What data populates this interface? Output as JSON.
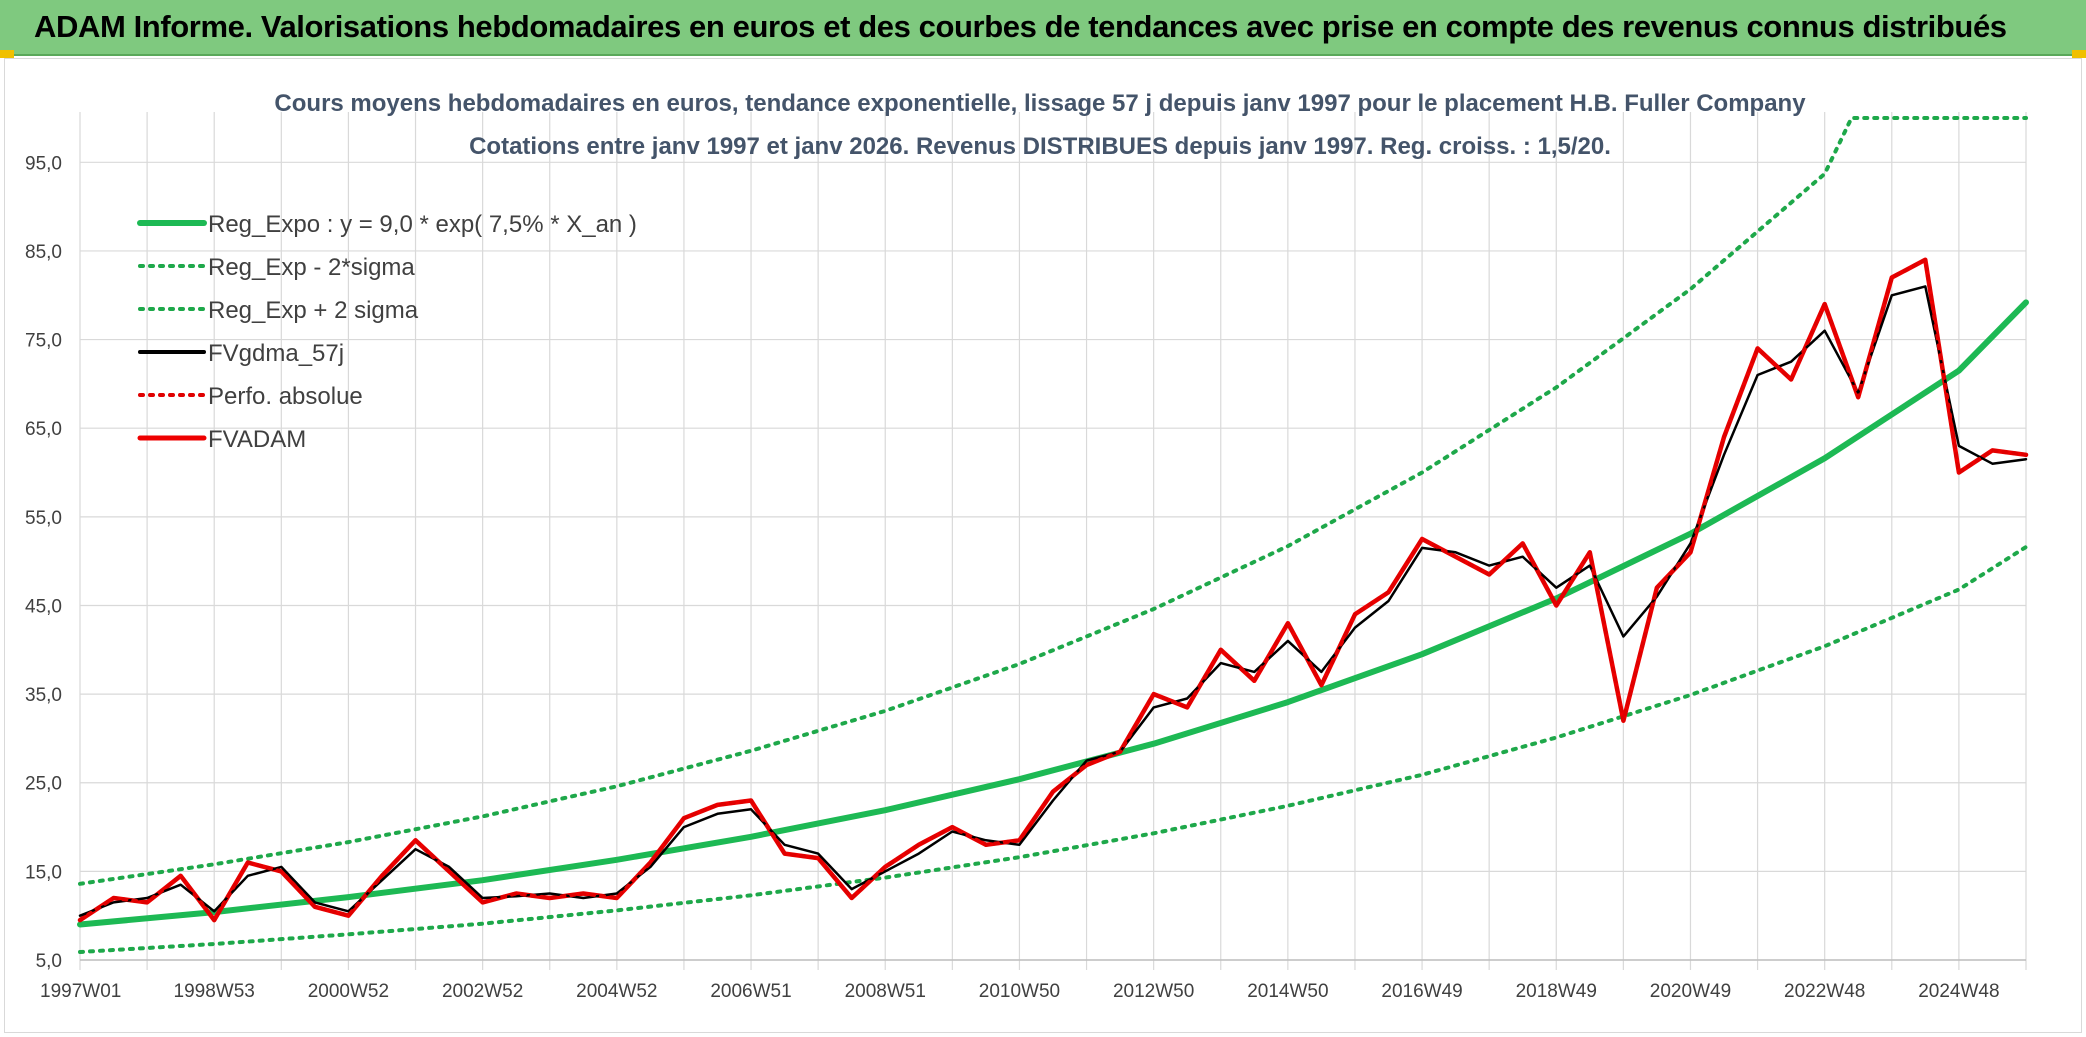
{
  "banner": {
    "title": "ADAM Informe. Valorisations hebdomadaires en euros et des courbes de tendances avec prise en compte des revenus connus distribués"
  },
  "colors": {
    "banner_bg": "#7fc97f",
    "reg_expo": "#1db954",
    "reg_bands": "#1ea84a",
    "fvgdma": "#000000",
    "perfo_absolue": "#e00000",
    "fvadam": "#ee0000",
    "grid": "#d9d9d9",
    "title": "#44546a"
  },
  "chart_data": {
    "type": "line",
    "title": "Cours moyens hebdomadaires en euros, tendance exponentielle, lissage 57 j depuis janv 1997 pour le placement H.B. Fuller Company",
    "subtitle": "Cotations entre janv 1997 et janv 2026. Revenus DISTRIBUES depuis janv 1997. Reg. croiss. : 1,5/20.",
    "xlabel": "",
    "ylabel": "",
    "x_range": [
      1997.0,
      2026.0
    ],
    "ylim": [
      5,
      100
    ],
    "y_ticks": [
      "5,0",
      "15,0",
      "25,0",
      "35,0",
      "45,0",
      "55,0",
      "65,0",
      "75,0",
      "85,0",
      "95,0"
    ],
    "x_ticks": [
      "1997W01",
      "1998W53",
      "2000W52",
      "2002W52",
      "2004W52",
      "2006W51",
      "2008W51",
      "2010W50",
      "2012W50",
      "2014W50",
      "2016W49",
      "2018W49",
      "2020W49",
      "2022W48",
      "2024W48"
    ],
    "grid": true,
    "legend_position": "top-left",
    "legend": [
      "Reg_Expo : y = 9,0 * exp( 7,5% *  X_an )",
      "Reg_Exp - 2*sigma",
      "Reg_Exp + 2 sigma",
      "FVgdma_57j",
      "Perfo. absolue",
      "FVADAM"
    ],
    "series": [
      {
        "name": "Reg_Expo : y = 9,0 * exp( 7,5% *  X_an )",
        "style": "solid-thick",
        "color": "#1db954",
        "x": [
          1997,
          1999,
          2001,
          2003,
          2005,
          2007,
          2009,
          2011,
          2013,
          2015,
          2017,
          2019,
          2021,
          2023,
          2025,
          2026
        ],
        "values": [
          9.0,
          10.4,
          12.1,
          14.0,
          16.3,
          18.9,
          21.9,
          25.4,
          29.4,
          34.1,
          39.5,
          45.8,
          53.1,
          61.6,
          71.5,
          79.2
        ]
      },
      {
        "name": "Reg_Exp - 2*sigma",
        "style": "dotted",
        "color": "#1ea84a",
        "x": [
          1997,
          1999,
          2001,
          2003,
          2005,
          2007,
          2009,
          2011,
          2013,
          2015,
          2017,
          2019,
          2021,
          2023,
          2025,
          2026
        ],
        "values": [
          5.9,
          6.8,
          7.9,
          9.1,
          10.6,
          12.3,
          14.3,
          16.6,
          19.3,
          22.4,
          25.9,
          30.1,
          34.9,
          40.4,
          46.8,
          51.6
        ]
      },
      {
        "name": "Reg_Exp + 2 sigma",
        "style": "dotted",
        "color": "#1ea84a",
        "x": [
          1997,
          1999,
          2001,
          2003,
          2005,
          2007,
          2009,
          2011,
          2013,
          2015,
          2017,
          2019,
          2021,
          2023,
          2023.4,
          2026
        ],
        "values": [
          13.6,
          15.8,
          18.3,
          21.2,
          24.6,
          28.6,
          33.1,
          38.4,
          44.6,
          51.7,
          60.0,
          69.6,
          80.7,
          93.7,
          100.0,
          100.0
        ]
      },
      {
        "name": "FVgdma_57j",
        "style": "solid",
        "color": "#000000",
        "x": [
          1997.0,
          1997.5,
          1998.0,
          1998.5,
          1999.0,
          1999.5,
          2000.0,
          2000.5,
          2001.0,
          2001.5,
          2002.0,
          2002.5,
          2003.0,
          2003.5,
          2004.0,
          2004.5,
          2005.0,
          2005.5,
          2006.0,
          2006.5,
          2007.0,
          2007.5,
          2008.0,
          2008.5,
          2009.0,
          2009.5,
          2010.0,
          2010.5,
          2011.0,
          2011.5,
          2012.0,
          2012.5,
          2013.0,
          2013.5,
          2014.0,
          2014.5,
          2015.0,
          2015.5,
          2016.0,
          2016.5,
          2017.0,
          2017.5,
          2018.0,
          2018.5,
          2019.0,
          2019.5,
          2020.0,
          2020.5,
          2021.0,
          2021.5,
          2022.0,
          2022.5,
          2023.0,
          2023.5,
          2024.0,
          2024.5,
          2025.0,
          2025.5,
          2026.0
        ],
        "values": [
          10.0,
          11.5,
          12.0,
          13.5,
          10.5,
          14.5,
          15.5,
          11.5,
          10.5,
          14.0,
          17.5,
          15.5,
          12.0,
          12.2,
          12.5,
          12.0,
          12.5,
          15.5,
          20.0,
          21.5,
          22.0,
          18.0,
          17.0,
          13.0,
          15.0,
          17.0,
          19.5,
          18.5,
          18.0,
          23.0,
          27.5,
          28.5,
          33.5,
          34.5,
          38.5,
          37.5,
          41.0,
          37.5,
          42.5,
          45.5,
          51.5,
          51.0,
          49.5,
          50.5,
          47.0,
          49.5,
          41.5,
          46.0,
          52.0,
          62.0,
          71.0,
          72.5,
          76.0,
          69.0,
          80.0,
          81.0,
          63.0,
          61.0,
          61.5
        ]
      },
      {
        "name": "Perfo. absolue",
        "style": "dotted",
        "color": "#e00000",
        "x": [
          1997.0,
          1997.5,
          1998.0,
          1998.5,
          1999.0,
          1999.5,
          2000.0,
          2000.5,
          2001.0,
          2001.5,
          2002.0,
          2002.5,
          2003.0,
          2003.5,
          2004.0,
          2004.5,
          2005.0,
          2005.5,
          2006.0,
          2006.5,
          2007.0,
          2007.5,
          2008.0,
          2008.5,
          2009.0,
          2009.5,
          2010.0,
          2010.5,
          2011.0,
          2011.5,
          2012.0,
          2012.5,
          2013.0,
          2013.5,
          2014.0,
          2014.5,
          2015.0,
          2015.5,
          2016.0,
          2016.5,
          2017.0,
          2017.5,
          2018.0,
          2018.5,
          2019.0,
          2019.5,
          2020.0,
          2020.5,
          2021.0,
          2021.5,
          2022.0,
          2022.5,
          2023.0,
          2023.5,
          2024.0,
          2024.5,
          2025.0,
          2025.5,
          2026.0
        ],
        "values": [
          9.5,
          12.0,
          11.5,
          14.5,
          9.5,
          16.0,
          15.0,
          11.0,
          10.0,
          14.5,
          18.5,
          15.0,
          11.5,
          12.5,
          12.0,
          12.5,
          12.0,
          16.0,
          21.0,
          22.5,
          23.0,
          17.0,
          16.5,
          12.0,
          15.5,
          18.0,
          20.0,
          18.0,
          18.5,
          24.0,
          27.0,
          28.5,
          35.0,
          33.5,
          40.0,
          36.5,
          43.0,
          36.0,
          44.0,
          46.5,
          52.5,
          50.5,
          48.5,
          52.0,
          45.0,
          51.0,
          32.0,
          47.0,
          51.0,
          64.0,
          74.0,
          70.5,
          79.0,
          68.5,
          82.0,
          84.0,
          60.0,
          62.5,
          62.0
        ]
      },
      {
        "name": "FVADAM",
        "style": "solid-thick",
        "color": "#ee0000",
        "x": [
          1997.0,
          1997.5,
          1998.0,
          1998.5,
          1999.0,
          1999.5,
          2000.0,
          2000.5,
          2001.0,
          2001.5,
          2002.0,
          2002.5,
          2003.0,
          2003.5,
          2004.0,
          2004.5,
          2005.0,
          2005.5,
          2006.0,
          2006.5,
          2007.0,
          2007.5,
          2008.0,
          2008.5,
          2009.0,
          2009.5,
          2010.0,
          2010.5,
          2011.0,
          2011.5,
          2012.0,
          2012.5,
          2013.0,
          2013.5,
          2014.0,
          2014.5,
          2015.0,
          2015.5,
          2016.0,
          2016.5,
          2017.0,
          2017.5,
          2018.0,
          2018.5,
          2019.0,
          2019.5,
          2020.0,
          2020.5,
          2021.0,
          2021.5,
          2022.0,
          2022.5,
          2023.0,
          2023.5,
          2024.0,
          2024.5,
          2025.0,
          2025.5,
          2026.0
        ],
        "values": [
          9.5,
          12.0,
          11.5,
          14.5,
          9.5,
          16.0,
          15.0,
          11.0,
          10.0,
          14.5,
          18.5,
          15.0,
          11.5,
          12.5,
          12.0,
          12.5,
          12.0,
          16.0,
          21.0,
          22.5,
          23.0,
          17.0,
          16.5,
          12.0,
          15.5,
          18.0,
          20.0,
          18.0,
          18.5,
          24.0,
          27.0,
          28.5,
          35.0,
          33.5,
          40.0,
          36.5,
          43.0,
          36.0,
          44.0,
          46.5,
          52.5,
          50.5,
          48.5,
          52.0,
          45.0,
          51.0,
          32.0,
          47.0,
          51.0,
          64.0,
          74.0,
          70.5,
          79.0,
          68.5,
          82.0,
          84.0,
          60.0,
          62.5,
          62.0
        ]
      }
    ]
  }
}
